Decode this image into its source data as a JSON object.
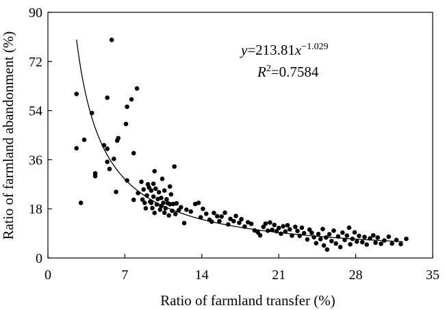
{
  "chart_data": {
    "type": "scatter",
    "title": "",
    "xlabel": "Ratio of farmland transfer (%)",
    "ylabel": "Ratio of farmland abandonment (%)",
    "xlim": [
      0,
      35
    ],
    "ylim": [
      0,
      90
    ],
    "xticks": [
      0,
      7,
      14,
      21,
      28,
      35
    ],
    "yticks": [
      0,
      18,
      36,
      54,
      72,
      90
    ],
    "grid": false,
    "legend": "none",
    "annotation": {
      "y_symbol": "y",
      "eq_rest": "=213.81",
      "x_symbol": "x",
      "exponent": "−1.029",
      "r_symbol": "R",
      "r_exp": "2",
      "r_value": "=0.7584"
    },
    "fit": {
      "a": 213.81,
      "b": -1.029,
      "x_range": [
        2.6,
        32.3
      ]
    },
    "points": [
      [
        2.6,
        60.1
      ],
      [
        2.6,
        40.2
      ],
      [
        3.0,
        20.2
      ],
      [
        3.3,
        43.3
      ],
      [
        4.0,
        53.1
      ],
      [
        4.3,
        31.0
      ],
      [
        4.3,
        30.0
      ],
      [
        5.1,
        41.3
      ],
      [
        5.4,
        40.0
      ],
      [
        5.4,
        58.7
      ],
      [
        5.4,
        35.2
      ],
      [
        5.6,
        32.6
      ],
      [
        5.8,
        79.9
      ],
      [
        6.0,
        36.3
      ],
      [
        6.2,
        24.2
      ],
      [
        6.3,
        43.0
      ],
      [
        6.4,
        43.9
      ],
      [
        7.1,
        49.1
      ],
      [
        7.2,
        55.4
      ],
      [
        7.2,
        28.4
      ],
      [
        7.6,
        58.1
      ],
      [
        7.8,
        38.4
      ],
      [
        7.8,
        21.3
      ],
      [
        8.1,
        62.1
      ],
      [
        8.2,
        23.8
      ],
      [
        8.5,
        27.9
      ],
      [
        8.6,
        21.4
      ],
      [
        8.7,
        25.1
      ],
      [
        8.8,
        20.2
      ],
      [
        8.9,
        18.2
      ],
      [
        9.0,
        22.9
      ],
      [
        9.1,
        27.0
      ],
      [
        9.2,
        25.8
      ],
      [
        9.3,
        20.6
      ],
      [
        9.4,
        24.7
      ],
      [
        9.4,
        20.2
      ],
      [
        9.5,
        18.3
      ],
      [
        9.6,
        22.5
      ],
      [
        9.6,
        27.2
      ],
      [
        9.7,
        16.5
      ],
      [
        9.7,
        31.8
      ],
      [
        9.8,
        25.4
      ],
      [
        9.9,
        19.6
      ],
      [
        10.0,
        21.6
      ],
      [
        10.1,
        24.1
      ],
      [
        10.2,
        17.7
      ],
      [
        10.3,
        22.0
      ],
      [
        10.3,
        19.0
      ],
      [
        10.4,
        29.0
      ],
      [
        10.5,
        20.2
      ],
      [
        10.6,
        16.6
      ],
      [
        10.6,
        24.7
      ],
      [
        10.7,
        18.2
      ],
      [
        10.8,
        21.5
      ],
      [
        10.9,
        20.1
      ],
      [
        11.0,
        15.6
      ],
      [
        11.1,
        19.7
      ],
      [
        11.1,
        26.2
      ],
      [
        11.2,
        23.3
      ],
      [
        11.3,
        17.3
      ],
      [
        11.4,
        19.8
      ],
      [
        11.5,
        33.5
      ],
      [
        11.6,
        16.1
      ],
      [
        11.7,
        20.0
      ],
      [
        11.9,
        17.5
      ],
      [
        12.1,
        18.6
      ],
      [
        12.4,
        12.8
      ],
      [
        12.6,
        17.7
      ],
      [
        13.0,
        17.0
      ],
      [
        13.4,
        19.8
      ],
      [
        13.7,
        20.2
      ],
      [
        13.9,
        14.9
      ],
      [
        14.1,
        18.0
      ],
      [
        14.4,
        16.2
      ],
      [
        14.7,
        14.0
      ],
      [
        14.9,
        13.3
      ],
      [
        15.1,
        16.5
      ],
      [
        15.4,
        15.3
      ],
      [
        15.6,
        13.5
      ],
      [
        15.8,
        15.2
      ],
      [
        16.1,
        16.6
      ],
      [
        16.4,
        12.3
      ],
      [
        16.6,
        14.3
      ],
      [
        16.9,
        13.5
      ],
      [
        17.1,
        15.4
      ],
      [
        17.4,
        12.9
      ],
      [
        17.6,
        14.2
      ],
      [
        17.9,
        11.5
      ],
      [
        18.2,
        13.1
      ],
      [
        18.5,
        12.5
      ],
      [
        18.8,
        10.1
      ],
      [
        19.1,
        9.4
      ],
      [
        19.3,
        8.3
      ],
      [
        19.6,
        11.4
      ],
      [
        19.8,
        12.6
      ],
      [
        20.0,
        10.0
      ],
      [
        20.2,
        13.0
      ],
      [
        20.4,
        10.3
      ],
      [
        20.6,
        12.1
      ],
      [
        20.8,
        9.8
      ],
      [
        21.0,
        11.0
      ],
      [
        21.2,
        8.9
      ],
      [
        21.4,
        11.6
      ],
      [
        21.6,
        9.7
      ],
      [
        21.8,
        12.0
      ],
      [
        22.0,
        10.5
      ],
      [
        22.2,
        8.2
      ],
      [
        22.5,
        11.4
      ],
      [
        22.7,
        9.9
      ],
      [
        22.9,
        8.1
      ],
      [
        23.1,
        11.1
      ],
      [
        23.3,
        9.1
      ],
      [
        23.6,
        6.8
      ],
      [
        23.8,
        10.4
      ],
      [
        24.0,
        9.2
      ],
      [
        24.2,
        7.6
      ],
      [
        24.4,
        5.4
      ],
      [
        24.6,
        8.8
      ],
      [
        24.8,
        6.9
      ],
      [
        25.0,
        10.6
      ],
      [
        25.1,
        4.6
      ],
      [
        25.3,
        7.5
      ],
      [
        25.4,
        3.1
      ],
      [
        25.6,
        8.7
      ],
      [
        25.8,
        6.2
      ],
      [
        26.0,
        10.0
      ],
      [
        26.2,
        5.3
      ],
      [
        26.4,
        7.9
      ],
      [
        26.6,
        4.0
      ],
      [
        26.8,
        9.3
      ],
      [
        27.0,
        6.6
      ],
      [
        27.2,
        8.2
      ],
      [
        27.4,
        11.1
      ],
      [
        27.5,
        5.0
      ],
      [
        27.7,
        7.0
      ],
      [
        27.9,
        9.4
      ],
      [
        28.1,
        6.0
      ],
      [
        28.3,
        8.1
      ],
      [
        28.6,
        5.8
      ],
      [
        28.8,
        7.7
      ],
      [
        29.0,
        4.9
      ],
      [
        29.3,
        7.2
      ],
      [
        29.6,
        8.3
      ],
      [
        29.8,
        5.6
      ],
      [
        30.0,
        7.5
      ],
      [
        30.3,
        5.2
      ],
      [
        30.6,
        6.4
      ],
      [
        31.0,
        7.8
      ],
      [
        31.3,
        5.3
      ],
      [
        31.7,
        6.6
      ],
      [
        32.1,
        5.1
      ],
      [
        32.6,
        7.0
      ]
    ]
  }
}
